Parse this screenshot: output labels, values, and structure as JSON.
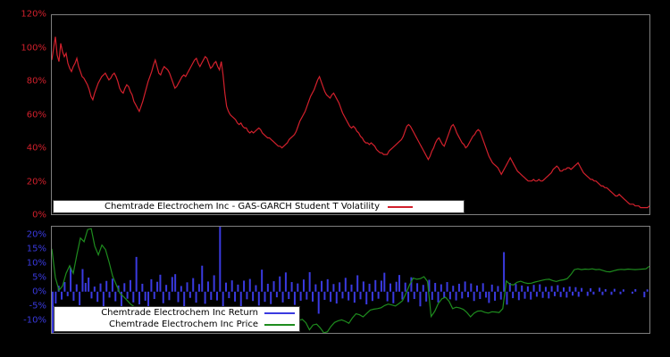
{
  "figure": {
    "background": "#000000",
    "panel_border_color": "#7f7f7f",
    "legend_border_color": "#3d3d3d"
  },
  "chart_data": [
    {
      "type": "line",
      "name": "volatility",
      "legend": "Chemtrade Electrochem Inc - GAS-GARCH Student T Volatility",
      "color": "#d2202c",
      "tick_color": "#d2202c",
      "ylim": [
        0,
        120
      ],
      "grid": false,
      "legend_position": "lower center",
      "yticks": [
        {
          "label": "0%",
          "value": 0
        },
        {
          "label": "20%",
          "value": 20
        },
        {
          "label": "40%",
          "value": 40
        },
        {
          "label": "60%",
          "value": 60
        },
        {
          "label": "80%",
          "value": 80
        },
        {
          "label": "100%",
          "value": 100
        },
        {
          "label": "120%",
          "value": 120
        }
      ],
      "unit": "percent",
      "values": [
        93,
        100,
        107,
        96,
        92,
        103,
        98,
        95,
        97,
        91,
        88,
        86,
        89,
        91,
        94,
        89,
        86,
        83,
        82,
        80,
        78,
        75,
        71,
        69,
        73,
        76,
        79,
        81,
        83,
        84,
        85,
        83,
        81,
        82,
        84,
        85,
        83,
        80,
        76,
        74,
        73,
        76,
        78,
        77,
        74,
        72,
        68,
        66,
        64,
        62,
        65,
        68,
        72,
        76,
        80,
        83,
        86,
        90,
        93,
        89,
        85,
        84,
        87,
        89,
        88,
        87,
        85,
        82,
        79,
        76,
        77,
        79,
        81,
        83,
        84,
        83,
        85,
        87,
        89,
        91,
        93,
        94,
        91,
        89,
        91,
        93,
        95,
        94,
        91,
        88,
        89,
        91,
        92,
        89,
        87,
        92,
        84,
        73,
        65,
        62,
        60,
        59,
        58,
        57,
        55,
        54,
        55,
        53,
        52,
        52,
        50,
        49,
        50,
        49,
        50,
        51,
        52,
        51,
        49,
        48,
        47,
        46,
        46,
        45,
        44,
        43,
        42,
        41,
        41,
        40,
        41,
        42,
        43,
        45,
        46,
        47,
        48,
        50,
        53,
        56,
        58,
        60,
        62,
        65,
        68,
        71,
        73,
        75,
        78,
        81,
        83,
        80,
        77,
        74,
        72,
        71,
        70,
        72,
        73,
        71,
        69,
        67,
        64,
        61,
        59,
        57,
        55,
        53,
        52,
        53,
        52,
        50,
        49,
        47,
        46,
        44,
        43,
        43,
        42,
        43,
        42,
        41,
        39,
        38,
        37,
        37,
        36,
        36,
        36,
        38,
        39,
        40,
        41,
        42,
        43,
        44,
        45,
        47,
        50,
        53,
        54,
        53,
        51,
        49,
        47,
        45,
        43,
        41,
        39,
        37,
        35,
        33,
        35,
        38,
        40,
        43,
        45,
        46,
        44,
        42,
        41,
        44,
        47,
        50,
        53,
        54,
        52,
        49,
        47,
        45,
        43,
        42,
        40,
        41,
        43,
        45,
        47,
        48,
        50,
        51,
        50,
        47,
        44,
        41,
        38,
        35,
        33,
        31,
        30,
        29,
        28,
        26,
        24,
        26,
        28,
        30,
        32,
        34,
        32,
        30,
        28,
        26,
        25,
        24,
        23,
        22,
        21,
        20,
        20,
        20,
        21,
        20,
        20,
        21,
        20,
        20,
        21,
        22,
        23,
        24,
        25,
        27,
        28,
        29,
        28,
        26,
        26,
        27,
        27,
        28,
        28,
        27,
        28,
        29,
        30,
        31,
        29,
        27,
        25,
        24,
        23,
        22,
        21,
        21,
        20,
        20,
        19,
        18,
        17,
        17,
        16,
        16,
        15,
        14,
        13,
        12,
        11,
        11,
        12,
        11,
        10,
        9,
        8,
        7,
        6,
        6,
        6,
        5,
        5,
        5,
        4,
        4,
        4,
        4,
        4,
        5
      ]
    },
    {
      "type": "bar+line",
      "name": "returns_and_price",
      "tick_color": "#3a3ae0",
      "ylim": [
        -14.6,
        23.0
      ],
      "grid": false,
      "legend_position": "lower left",
      "yticks": [
        {
          "label": "20%",
          "value": 20
        },
        {
          "label": "15%",
          "value": 15
        },
        {
          "label": "10%",
          "value": 10
        },
        {
          "label": "5%",
          "value": 5
        },
        {
          "label": "0%",
          "value": 0
        },
        {
          "label": "-5%",
          "value": -5
        },
        {
          "label": "-10%",
          "value": -10
        }
      ],
      "unit": "percent",
      "series": [
        {
          "name": "Chemtrade Electrochem Inc Return",
          "type": "bar",
          "color": "#3a3ae0",
          "values": [
            -15.0,
            -4.2,
            2.1,
            -2.8,
            3.4,
            -1.6,
            8.5,
            -3.2,
            2.6,
            -4.8,
            8.0,
            3.1,
            5.0,
            -2.4,
            1.8,
            -3.6,
            2.9,
            -5.2,
            3.8,
            -2.1,
            4.6,
            -3.4,
            2.2,
            -6.1,
            3.0,
            -2.5,
            4.1,
            -3.8,
            12.3,
            -4.5,
            2.8,
            -3.2,
            -6.0,
            4.4,
            -2.6,
            3.5,
            6.0,
            -4.1,
            2.4,
            -3.0,
            5.2,
            6.2,
            -3.7,
            2.0,
            -5.5,
            3.3,
            -2.2,
            4.8,
            -3.9,
            2.7,
            9.2,
            -4.3,
            3.6,
            -2.9,
            5.8,
            -3.1,
            23.0,
            -5.8,
            3.2,
            -2.3,
            4.0,
            -3.5,
            2.5,
            -6.3,
            3.9,
            -2.7,
            4.5,
            -3.3,
            2.3,
            -4.9,
            7.8,
            -3.6,
            2.8,
            -4.4,
            3.7,
            -2.0,
            5.4,
            -3.8,
            6.8,
            -2.6,
            3.4,
            -4.7,
            2.9,
            -3.2,
            4.3,
            -2.8,
            6.9,
            -3.5,
            2.6,
            -7.8,
            3.8,
            -2.9,
            4.4,
            -3.6,
            2.7,
            -4.2,
            3.3,
            -2.4,
            4.9,
            -3.1,
            2.5,
            -3.9,
            5.8,
            -2.7,
            3.6,
            -4.5,
            2.8,
            -3.3,
            4.1,
            -2.5,
            3.9,
            6.7,
            -3.4,
            2.9,
            -4.1,
            3.5,
            5.9,
            -2.8,
            3.2,
            -3.7,
            5.1,
            -2.6,
            3.0,
            -5.2,
            2.4,
            -3.5,
            4.2,
            -2.9,
            3.1,
            -3.8,
            2.6,
            -2.2,
            3.4,
            -2.7,
            2.1,
            -3.1,
            2.8,
            -2.4,
            3.6,
            -2.0,
            2.9,
            -3.3,
            2.2,
            -2.6,
            3.0,
            -2.1,
            -4.0,
            2.5,
            -3.2,
            2.0,
            -2.8,
            14.0,
            -4.6,
            3.1,
            -2.3,
            2.7,
            -3.0,
            2.2,
            -2.5,
            1.9,
            -2.8,
            2.4,
            -1.8,
            2.6,
            -2.2,
            1.7,
            -2.4,
            2.0,
            -1.6,
            2.3,
            -1.9,
            1.5,
            -2.1,
            1.8,
            -1.4,
            1.6,
            -1.8,
            1.3,
            0,
            -1.5,
            1.2,
            -1.0,
            0,
            1.4,
            -1.2,
            0.9,
            0,
            -1.1,
            1.0,
            0,
            -0.9,
            0.8,
            0,
            0,
            -0.7,
            0.9,
            0,
            0,
            -2.0,
            0.8
          ]
        },
        {
          "name": "Chemtrade Electrochem Inc Price",
          "type": "line",
          "color": "#1e8c1e",
          "values": [
            15.2,
            5.0,
            0.5,
            2.0,
            6.5,
            9.2,
            6.5,
            13.0,
            19.0,
            17.7,
            22.0,
            22.3,
            16.1,
            13.0,
            16.5,
            14.9,
            10.5,
            5.5,
            2.5,
            -0.5,
            -1.7,
            -3.0,
            -4.4,
            -5.3,
            -6.2,
            -7.2,
            -7.9,
            -8.6,
            -9.1,
            -9.6,
            -10.2,
            -10.7,
            -11.2,
            -11.4,
            -11.0,
            -10.6,
            -11.1,
            -11.6,
            -12.1,
            -12.4,
            -12.1,
            -12.4,
            -12.9,
            -12.6,
            -12.9,
            -13.4,
            -13.1,
            -12.6,
            -12.1,
            -12.4,
            -12.9,
            -13.3,
            -13.1,
            -12.6,
            -12.1,
            -12.4,
            -12.8,
            -12.5,
            -12.1,
            -11.6,
            -11.1,
            -10.8,
            -10.5,
            -10.2,
            -9.8,
            -10.3,
            -10.9,
            -11.4,
            -10.8,
            -10.2,
            -9.8,
            -11.0,
            -13.5,
            -11.8,
            -11.5,
            -12.8,
            -14.6,
            -14.2,
            -12.3,
            -10.9,
            -10.3,
            -10.0,
            -10.5,
            -11.2,
            -9.3,
            -7.8,
            -8.2,
            -8.9,
            -7.7,
            -6.5,
            -6.2,
            -6.0,
            -5.7,
            -4.9,
            -4.4,
            -4.7,
            -5.1,
            -4.2,
            -3.2,
            -0.5,
            2.5,
            4.8,
            4.4,
            4.6,
            5.3,
            3.6,
            -8.8,
            -7.0,
            -4.2,
            -2.5,
            -2.0,
            -3.4,
            -6.0,
            -5.5,
            -5.8,
            -6.3,
            -7.4,
            -8.9,
            -7.6,
            -6.9,
            -6.8,
            -7.3,
            -7.6,
            -7.1,
            -7.2,
            -7.4,
            -6.0,
            3.8,
            2.6,
            2.4,
            3.3,
            3.7,
            3.2,
            2.9,
            3.0,
            3.4,
            3.7,
            4.0,
            4.3,
            4.4,
            3.9,
            3.6,
            4.0,
            4.2,
            4.6,
            6.0,
            7.8,
            8.1,
            7.8,
            8.0,
            7.9,
            8.1,
            7.8,
            7.9,
            7.5,
            7.1,
            7.0,
            7.4,
            7.7,
            7.9,
            7.8,
            8.0,
            7.9,
            7.8,
            7.9,
            8.0,
            8.1,
            9.0
          ]
        }
      ]
    }
  ]
}
